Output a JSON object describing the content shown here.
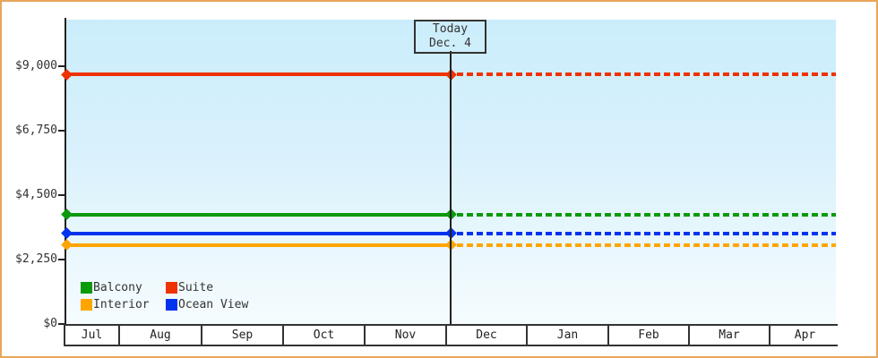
{
  "chart_data": {
    "type": "line",
    "title": "",
    "description": "Cruise cabin price tracker: flat price lines per cabin category, solid history up to today, dotted projection after today",
    "x_axis": {
      "months": [
        "Jul",
        "Aug",
        "Sep",
        "Oct",
        "Nov",
        "Dec",
        "Jan",
        "Feb",
        "Mar",
        "Apr"
      ]
    },
    "y_axis": {
      "ticks": [
        {
          "label": "$9,000",
          "value": 9000
        },
        {
          "label": "$6,750",
          "value": 6750
        },
        {
          "label": "$4,500",
          "value": 4500
        },
        {
          "label": "$2,250",
          "value": 2250
        },
        {
          "label": "$0",
          "value": 0
        }
      ],
      "ylim": [
        0,
        10600
      ],
      "grid": false
    },
    "series": [
      {
        "name": "Suite",
        "color": "#ee3300",
        "value": 8700
      },
      {
        "name": "Balcony",
        "color": "#0a9a0a",
        "value": 3800
      },
      {
        "name": "Ocean View",
        "color": "#0033ee",
        "value": 3150
      },
      {
        "name": "Interior",
        "color": "#ffa500",
        "value": 2750
      }
    ],
    "today_marker": {
      "line1": "Today",
      "line2": "Dec. 4"
    },
    "legend": {
      "position": "bottom-left-inside",
      "items": [
        "Balcony",
        "Suite",
        "Interior",
        "Ocean View"
      ]
    },
    "style": {
      "solid_before_today": true,
      "dashed_after_today": true,
      "marker_shape": "diamond",
      "plot_background_top": "#cbedfb",
      "plot_background_bottom": "#f5fcfe",
      "frame_border_color": "#e9a55b",
      "axis_color": "#222222",
      "text_color": "#333333"
    }
  }
}
